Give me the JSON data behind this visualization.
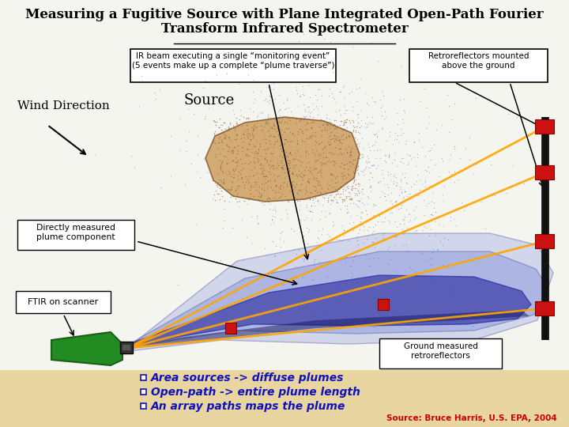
{
  "title_line1": "Measuring a Fugitive Source with Plane Integrated Open-Path Fourier",
  "title_line2": "Transform Infrared Spectrometer",
  "bg_color": "#f5f5f0",
  "bottom_bg": "#e8d5a0",
  "box1_text": "IR beam executing a single “monitoring event”\n(5 events make up a complete “plume traverse”)",
  "box2_text": "Retroreflectors mounted\nabove the ground",
  "box3_text": "Directly measured\nplume component",
  "box4_text": "FTIR on scanner",
  "box5_text": "Ground measured\nretroreflectors",
  "wind_label": "Wind Direction",
  "source_label": "Source",
  "bullet1": "Area sources -> diffuse plumes",
  "bullet2": "Open-path -> entire plume length",
  "bullet3": "An array paths maps the plume",
  "source_credit": "Source: Bruce Harris, U.S. EPA, 2004",
  "bullet_color": "#1111bb",
  "title_color": "#000000",
  "source_credit_color": "#cc0000",
  "orange_beam": "#ffa500",
  "retro_bar_color": "#111111",
  "red_sq_color": "#cc1111",
  "green_ftir": "#228B22",
  "plume_outer_color": "#b0b8e8",
  "plume_mid_color": "#8090d8",
  "plume_inner_color": "#3030a0",
  "source_fill": "#c8924a",
  "source_dots": "#3030a0",
  "source_brown_dots": "#8b5e2a"
}
